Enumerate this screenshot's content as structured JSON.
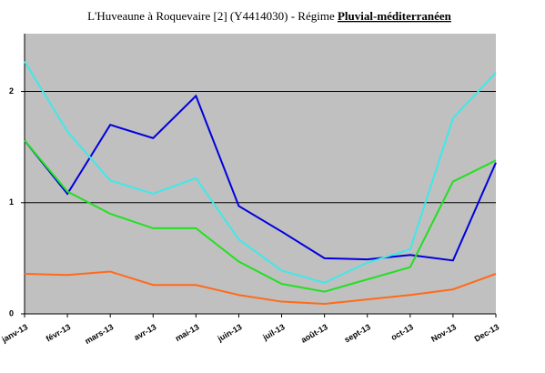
{
  "chart_data": {
    "type": "line",
    "title": "L'Huveaune à Roquevaire [2] (Y4414030) - Régime",
    "regime": "Pluvial-méditerranéen",
    "categories": [
      "janv-13",
      "févr-13",
      "mars-13",
      "avr-13",
      "mai-13",
      "juin-13",
      "juil-13",
      "août-13",
      "sept-13",
      "oct-13",
      "Nov-13",
      "Dec-13"
    ],
    "series": [
      {
        "color": "#0000dd",
        "values": [
          1.56,
          1.08,
          1.7,
          1.58,
          1.96,
          0.97,
          0.74,
          0.5,
          0.49,
          0.53,
          0.48,
          1.36
        ]
      },
      {
        "color": "#40e8e8",
        "values": [
          2.27,
          1.64,
          1.2,
          1.08,
          1.22,
          0.67,
          0.39,
          0.28,
          0.46,
          0.58,
          1.76,
          2.17
        ]
      },
      {
        "color": "#22e022",
        "values": [
          1.56,
          1.1,
          0.9,
          0.77,
          0.77,
          0.47,
          0.27,
          0.2,
          0.31,
          0.42,
          1.19,
          1.38
        ]
      },
      {
        "color": "#ff6a1a",
        "values": [
          0.36,
          0.35,
          0.38,
          0.26,
          0.26,
          0.17,
          0.11,
          0.09,
          0.13,
          0.17,
          0.22,
          0.36
        ]
      }
    ],
    "ylim": [
      0,
      2.52
    ],
    "yticks": [
      0,
      1,
      2
    ],
    "grid": true,
    "background": "#c0c0c0"
  }
}
